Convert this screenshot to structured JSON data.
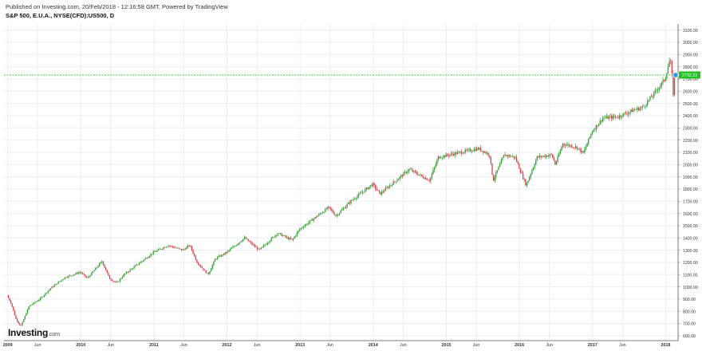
{
  "header": {
    "published": "Published on Investing.com, 20/Feb/2018 - 12:16:58 GMT, Powered by TradingView",
    "symbol": "S&P 500, E.U.A., NYSE(CFD):US500, D"
  },
  "logo": {
    "text": "Investing",
    "suffix": ".com"
  },
  "colors": {
    "up": "#2e9e2e",
    "down": "#d6404a",
    "line": "#22cc22",
    "marker": "#2196f3",
    "label_bg": "#22c222",
    "grid": "#eeeeee"
  },
  "chart_data": {
    "type": "candlestick",
    "x_tick_labels": [
      "2009",
      "Jun",
      "2010",
      "Jun",
      "2011",
      "Jun",
      "2012",
      "Jun",
      "2013",
      "Jun",
      "2014",
      "Jun",
      "2015",
      "Jun",
      "2016",
      "Jun",
      "2017",
      "Jun",
      "2018"
    ],
    "y_tick_labels": [
      "600.00",
      "700.00",
      "800.00",
      "900.00",
      "1000.00",
      "1100.00",
      "1200.00",
      "1300.00",
      "1400.00",
      "1500.00",
      "1600.00",
      "1700.00",
      "1800.00",
      "1900.00",
      "2000.00",
      "2100.00",
      "2200.00",
      "2300.00",
      "2400.00",
      "2500.00",
      "2600.00",
      "2700.00",
      "2800.00",
      "2900.00",
      "3000.00",
      "3100.00"
    ],
    "ylim": [
      560,
      3150
    ],
    "xlim": [
      2008.95,
      2018.17
    ],
    "current_price": 2732.22,
    "current_price_label": "2732.22",
    "price_path": [
      [
        2009.0,
        930
      ],
      [
        2009.06,
        860
      ],
      [
        2009.12,
        740
      ],
      [
        2009.19,
        676
      ],
      [
        2009.3,
        840
      ],
      [
        2009.45,
        900
      ],
      [
        2009.6,
        990
      ],
      [
        2009.8,
        1080
      ],
      [
        2010.0,
        1120
      ],
      [
        2010.1,
        1070
      ],
      [
        2010.3,
        1210
      ],
      [
        2010.4,
        1070
      ],
      [
        2010.5,
        1030
      ],
      [
        2010.6,
        1100
      ],
      [
        2010.8,
        1190
      ],
      [
        2011.0,
        1280
      ],
      [
        2011.2,
        1340
      ],
      [
        2011.4,
        1300
      ],
      [
        2011.5,
        1340
      ],
      [
        2011.6,
        1200
      ],
      [
        2011.75,
        1100
      ],
      [
        2011.85,
        1230
      ],
      [
        2012.0,
        1280
      ],
      [
        2012.25,
        1400
      ],
      [
        2012.45,
        1300
      ],
      [
        2012.7,
        1440
      ],
      [
        2012.9,
        1380
      ],
      [
        2013.0,
        1470
      ],
      [
        2013.4,
        1650
      ],
      [
        2013.5,
        1580
      ],
      [
        2013.7,
        1700
      ],
      [
        2014.0,
        1840
      ],
      [
        2014.1,
        1760
      ],
      [
        2014.5,
        1960
      ],
      [
        2014.78,
        1870
      ],
      [
        2014.9,
        2060
      ],
      [
        2015.2,
        2100
      ],
      [
        2015.45,
        2130
      ],
      [
        2015.6,
        2080
      ],
      [
        2015.65,
        1870
      ],
      [
        2015.8,
        2080
      ],
      [
        2015.95,
        2060
      ],
      [
        2016.1,
        1830
      ],
      [
        2016.25,
        2060
      ],
      [
        2016.45,
        2080
      ],
      [
        2016.5,
        2000
      ],
      [
        2016.6,
        2170
      ],
      [
        2016.8,
        2140
      ],
      [
        2016.88,
        2090
      ],
      [
        2017.0,
        2270
      ],
      [
        2017.15,
        2380
      ],
      [
        2017.35,
        2390
      ],
      [
        2017.55,
        2440
      ],
      [
        2017.7,
        2470
      ],
      [
        2017.85,
        2580
      ],
      [
        2018.0,
        2700
      ],
      [
        2018.07,
        2870
      ],
      [
        2018.1,
        2700
      ],
      [
        2018.11,
        2560
      ],
      [
        2018.13,
        2720
      ]
    ]
  }
}
